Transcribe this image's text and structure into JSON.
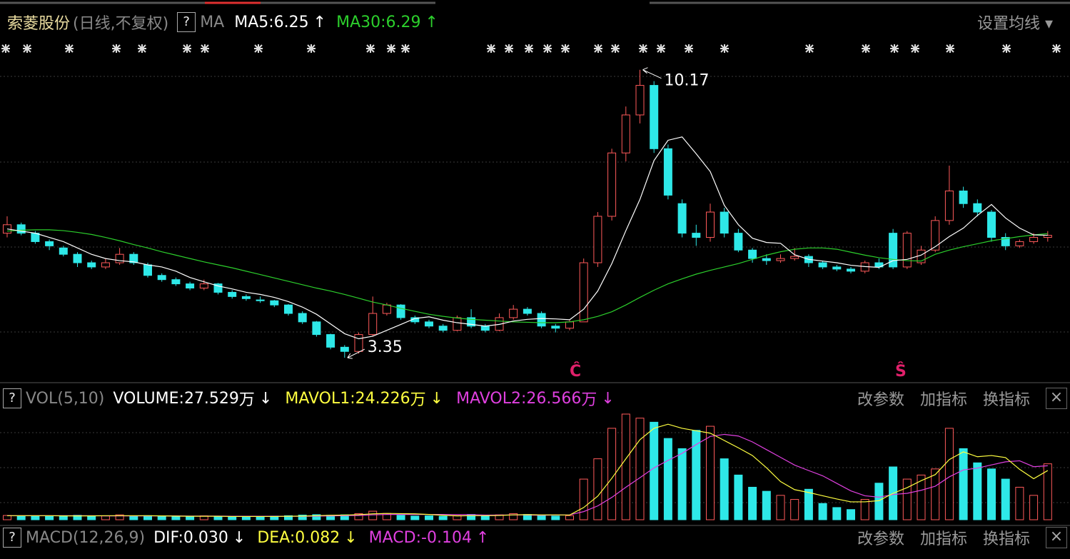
{
  "price_header": {
    "name": "索菱股份",
    "mode": "(日线,不复权)",
    "help": "?",
    "ma": "MA",
    "ma5_label": "MA5:",
    "ma30_label": "MA30:",
    "up_arrow": "↑",
    "settings": "设置均线 ▾"
  },
  "signals": [
    "Ĉ",
    "Ŝ"
  ],
  "volume_header": {
    "help": "?",
    "name": "VOL(5,10)",
    "volume_label": "VOLUME:",
    "mavol1_label": "MAVOL1:",
    "mavol2_label": "MAVOL2:",
    "unit": "万",
    "down_arrow": "↓",
    "buttons": [
      "改参数",
      "加指标",
      "换指标"
    ],
    "close": "×"
  },
  "macd_header": {
    "help": "?",
    "name": "MACD(12,26,9)",
    "dif": "DIF:0.030",
    "dea": "DEA:0.082",
    "macd": "MACD:-0.104",
    "down_arrow": "↓",
    "up_arrow": "↑",
    "buttons": [
      "改参数",
      "加指标",
      "换指标"
    ],
    "close": "×"
  },
  "chart_data": {
    "type": "candlestick",
    "ylim": [
      3.2,
      10.3
    ],
    "vlim": [
      0,
      52
    ],
    "up_color": "#ff5a5a",
    "down_color": "#2ee8e8",
    "ma5_color": "#ffffff",
    "ma30_color": "#2ccf2c",
    "mavol1_color": "#ffff40",
    "mavol2_color": "#e040e0",
    "candles": [
      [
        6.3,
        6.7,
        6.2,
        6.5
      ],
      [
        6.5,
        6.55,
        6.25,
        6.3
      ],
      [
        6.3,
        6.35,
        6.05,
        6.1
      ],
      [
        6.1,
        6.15,
        5.9,
        6.0
      ],
      [
        5.95,
        6.0,
        5.75,
        5.8
      ],
      [
        5.8,
        5.85,
        5.5,
        5.6
      ],
      [
        5.6,
        5.65,
        5.45,
        5.5
      ],
      [
        5.5,
        5.7,
        5.45,
        5.6
      ],
      [
        5.6,
        5.95,
        5.55,
        5.8
      ],
      [
        5.8,
        5.85,
        5.55,
        5.6
      ],
      [
        5.55,
        5.6,
        5.25,
        5.3
      ],
      [
        5.3,
        5.35,
        5.15,
        5.2
      ],
      [
        5.2,
        5.25,
        5.05,
        5.1
      ],
      [
        5.1,
        5.15,
        4.95,
        5.0
      ],
      [
        5.0,
        5.2,
        4.95,
        5.1
      ],
      [
        5.1,
        5.12,
        4.85,
        4.9
      ],
      [
        4.9,
        4.95,
        4.75,
        4.8
      ],
      [
        4.8,
        4.85,
        4.7,
        4.75
      ],
      [
        4.72,
        4.8,
        4.65,
        4.7
      ],
      [
        4.7,
        4.72,
        4.55,
        4.6
      ],
      [
        4.6,
        4.62,
        4.35,
        4.4
      ],
      [
        4.4,
        4.45,
        4.15,
        4.2
      ],
      [
        4.2,
        4.22,
        3.85,
        3.9
      ],
      [
        3.9,
        3.92,
        3.55,
        3.6
      ],
      [
        3.6,
        3.65,
        3.35,
        3.5
      ],
      [
        3.5,
        3.95,
        3.45,
        3.9
      ],
      [
        3.9,
        4.8,
        3.85,
        4.4
      ],
      [
        4.4,
        4.65,
        4.35,
        4.6
      ],
      [
        4.6,
        4.62,
        4.25,
        4.3
      ],
      [
        4.3,
        4.35,
        4.15,
        4.2
      ],
      [
        4.2,
        4.25,
        4.05,
        4.1
      ],
      [
        4.1,
        4.15,
        3.95,
        4.0
      ],
      [
        4.0,
        4.35,
        3.98,
        4.3
      ],
      [
        4.3,
        4.5,
        4.05,
        4.1
      ],
      [
        4.1,
        4.15,
        3.95,
        4.0
      ],
      [
        4.0,
        4.4,
        3.98,
        4.3
      ],
      [
        4.3,
        4.6,
        4.25,
        4.5
      ],
      [
        4.5,
        4.55,
        4.35,
        4.4
      ],
      [
        4.4,
        4.45,
        4.05,
        4.1
      ],
      [
        4.1,
        4.15,
        3.95,
        4.05
      ],
      [
        4.05,
        4.25,
        4.0,
        4.2
      ],
      [
        4.2,
        5.7,
        4.2,
        5.6
      ],
      [
        5.6,
        6.8,
        5.5,
        6.7
      ],
      [
        6.7,
        8.3,
        6.6,
        8.2
      ],
      [
        8.2,
        9.3,
        8.0,
        9.1
      ],
      [
        9.1,
        10.17,
        8.9,
        9.8
      ],
      [
        9.8,
        9.9,
        8.2,
        8.3
      ],
      [
        8.3,
        8.4,
        7.1,
        7.2
      ],
      [
        7.0,
        7.1,
        6.2,
        6.3
      ],
      [
        6.3,
        6.5,
        6.0,
        6.2
      ],
      [
        6.2,
        7.0,
        6.1,
        6.8
      ],
      [
        6.8,
        6.9,
        6.2,
        6.3
      ],
      [
        6.3,
        6.4,
        5.85,
        5.9
      ],
      [
        5.9,
        5.95,
        5.6,
        5.7
      ],
      [
        5.7,
        5.8,
        5.55,
        5.65
      ],
      [
        5.65,
        5.8,
        5.6,
        5.7
      ],
      [
        5.7,
        5.95,
        5.65,
        5.75
      ],
      [
        5.75,
        5.8,
        5.5,
        5.6
      ],
      [
        5.6,
        5.65,
        5.45,
        5.5
      ],
      [
        5.5,
        5.55,
        5.4,
        5.45
      ],
      [
        5.45,
        5.5,
        5.35,
        5.4
      ],
      [
        5.4,
        5.65,
        5.35,
        5.6
      ],
      [
        5.6,
        5.7,
        5.45,
        5.5
      ],
      [
        6.3,
        6.4,
        5.45,
        5.5
      ],
      [
        5.5,
        6.35,
        5.45,
        6.3
      ],
      [
        5.6,
        6.0,
        5.55,
        5.9
      ],
      [
        5.9,
        6.7,
        5.85,
        6.6
      ],
      [
        6.6,
        7.9,
        6.5,
        7.3
      ],
      [
        7.3,
        7.4,
        6.9,
        7.0
      ],
      [
        7.0,
        7.1,
        6.7,
        6.8
      ],
      [
        6.8,
        6.85,
        6.1,
        6.2
      ],
      [
        6.2,
        6.3,
        5.9,
        6.0
      ],
      [
        6.0,
        6.15,
        5.95,
        6.1
      ],
      [
        6.1,
        6.3,
        6.05,
        6.2
      ],
      [
        6.2,
        6.35,
        6.1,
        6.25
      ]
    ],
    "ma5": [
      6.4,
      6.35,
      6.3,
      6.2,
      6.1,
      5.95,
      5.8,
      5.7,
      5.65,
      5.62,
      5.55,
      5.5,
      5.4,
      5.25,
      5.15,
      5.05,
      4.98,
      4.9,
      4.85,
      4.78,
      4.68,
      4.55,
      4.38,
      4.15,
      3.92,
      3.8,
      3.86,
      4.0,
      4.14,
      4.28,
      4.32,
      4.24,
      4.18,
      4.14,
      4.1,
      4.14,
      4.22,
      4.26,
      4.28,
      4.27,
      4.25,
      4.5,
      4.93,
      5.58,
      6.36,
      7.1,
      8.02,
      8.5,
      8.58,
      8.18,
      7.76,
      6.96,
      6.5,
      6.18,
      6.08,
      6.06,
      5.79,
      5.68,
      5.64,
      5.6,
      5.54,
      5.51,
      5.49,
      5.65,
      5.68,
      5.78,
      5.98,
      6.22,
      6.42,
      6.72,
      6.98,
      6.66,
      6.42,
      6.26,
      6.25
    ],
    "ma30": [
      6.35,
      6.37,
      6.38,
      6.38,
      6.36,
      6.32,
      6.27,
      6.2,
      6.12,
      6.03,
      5.95,
      5.86,
      5.78,
      5.7,
      5.62,
      5.55,
      5.48,
      5.4,
      5.32,
      5.24,
      5.16,
      5.08,
      5.0,
      4.93,
      4.85,
      4.76,
      4.67,
      4.6,
      4.52,
      4.45,
      4.38,
      4.33,
      4.29,
      4.26,
      4.24,
      4.22,
      4.2,
      4.19,
      4.18,
      4.18,
      4.2,
      4.25,
      4.33,
      4.44,
      4.6,
      4.78,
      4.95,
      5.1,
      5.22,
      5.33,
      5.42,
      5.5,
      5.58,
      5.68,
      5.78,
      5.86,
      5.92,
      5.95,
      5.95,
      5.92,
      5.85,
      5.78,
      5.72,
      5.68,
      5.65,
      5.64,
      5.8,
      5.9,
      5.98,
      6.05,
      6.12,
      6.17,
      6.22,
      6.26,
      6.29
    ],
    "volume": [
      2.1,
      1.8,
      1.9,
      1.6,
      2.0,
      2.2,
      1.7,
      1.9,
      2.4,
      1.8,
      2.0,
      1.6,
      1.5,
      1.7,
      1.9,
      1.6,
      1.4,
      1.5,
      1.6,
      1.8,
      2.0,
      2.3,
      2.5,
      2.2,
      2.4,
      3.0,
      4.2,
      3.1,
      2.2,
      1.8,
      1.9,
      1.7,
      2.0,
      2.6,
      1.8,
      2.4,
      3.0,
      2.6,
      2.1,
      1.8,
      2.0,
      20,
      30,
      45,
      52,
      50,
      48,
      40,
      35,
      44,
      46,
      30,
      22,
      16,
      14,
      12,
      10,
      15,
      8,
      6,
      5,
      10,
      18,
      26,
      20,
      22,
      25,
      45,
      35,
      28,
      25,
      20,
      16,
      12,
      27.529
    ],
    "mavol1": [
      2,
      2,
      2,
      2,
      1.9,
      1.9,
      1.9,
      2,
      2,
      2,
      2,
      1.9,
      1.8,
      1.7,
      1.7,
      1.7,
      1.6,
      1.6,
      1.6,
      1.6,
      1.7,
      1.8,
      2,
      2.2,
      2.3,
      2.5,
      2.9,
      3.1,
      3,
      2.9,
      2.6,
      2.2,
      1.9,
      2,
      2,
      2.1,
      2.4,
      2.5,
      2.4,
      2.4,
      2.3,
      6,
      11.6,
      20.4,
      30,
      39.4,
      45,
      47,
      45,
      43.8,
      42.6,
      39,
      35.4,
      31.6,
      25.6,
      18.8,
      14.8,
      13.4,
      11.8,
      10.2,
      8.8,
      8.8,
      9.4,
      13,
      15.8,
      19.2,
      22.2,
      29.6,
      33.4,
      31,
      31.6,
      30.6,
      24.8,
      20.2,
      24.226
    ],
    "mavol2": [
      2,
      2,
      2,
      2,
      2,
      2,
      2,
      1.9,
      1.9,
      1.9,
      1.9,
      1.9,
      1.9,
      1.8,
      1.8,
      1.8,
      1.7,
      1.7,
      1.7,
      1.7,
      1.7,
      1.7,
      1.8,
      1.9,
      2,
      2.1,
      2.4,
      2.6,
      2.6,
      2.6,
      2.6,
      2.6,
      2.5,
      2.5,
      2.3,
      2.3,
      2.4,
      2.3,
      2.2,
      2.3,
      2.4,
      4,
      6.8,
      11,
      16,
      20.7,
      25.5,
      29.2,
      32.7,
      37,
      41,
      42,
      41.2,
      38.3,
      34.5,
      30.7,
      26.9,
      24.2,
      21.6,
      17.9,
      14.2,
      11.8,
      11.1,
      12.4,
      13,
      14.5,
      16.5,
      21.1,
      24.5,
      25.4,
      27,
      28.5,
      29,
      26.1,
      26.566
    ]
  }
}
